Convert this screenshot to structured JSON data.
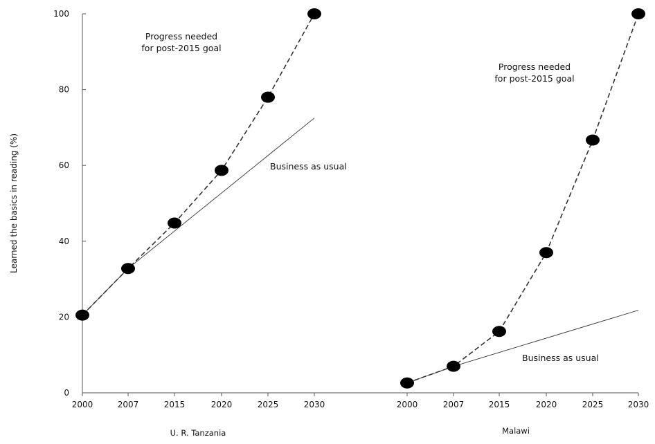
{
  "chart_data": {
    "type": "line",
    "ylabel": "Learned the basics in reading (%)",
    "ylim": [
      0,
      100
    ],
    "yticks": [
      0,
      20,
      40,
      60,
      80,
      100
    ],
    "grid": false,
    "panels": [
      {
        "label": "U. R. Tanzania",
        "x": [
          "2000",
          "2007",
          "2015",
          "2020",
          "2025",
          "2030"
        ],
        "series": [
          {
            "name": "Progress needed for post-2015 goal",
            "style": "dashed-markers",
            "values": [
              20.5,
              32.8,
              44.8,
              58.7,
              78.0,
              100.0
            ]
          },
          {
            "name": "Business as usual",
            "style": "thin-solid",
            "values": [
              20.5,
              32.8,
              null,
              null,
              null,
              72.5
            ]
          }
        ],
        "annotations": [
          {
            "text": [
              "Progress needed",
              "for post-2015 goal"
            ]
          },
          {
            "text": [
              "Business as usual"
            ]
          }
        ]
      },
      {
        "label": "Malawi",
        "x": [
          "2000",
          "2007",
          "2015",
          "2020",
          "2025",
          "2030"
        ],
        "series": [
          {
            "name": "Progress needed for post-2015 goal",
            "style": "dashed-markers",
            "values": [
              2.6,
              7.0,
              16.2,
              37.0,
              66.7,
              100.0
            ]
          },
          {
            "name": "Business as usual",
            "style": "thin-solid",
            "values": [
              2.6,
              7.0,
              null,
              null,
              null,
              21.8
            ]
          }
        ],
        "annotations": [
          {
            "text": [
              "Progress needed",
              "for post-2015 goal"
            ]
          },
          {
            "text": [
              "Business as usual"
            ]
          }
        ]
      }
    ],
    "colors": {
      "marker": "#000000",
      "line": "#333333",
      "axis": "#555555"
    }
  }
}
